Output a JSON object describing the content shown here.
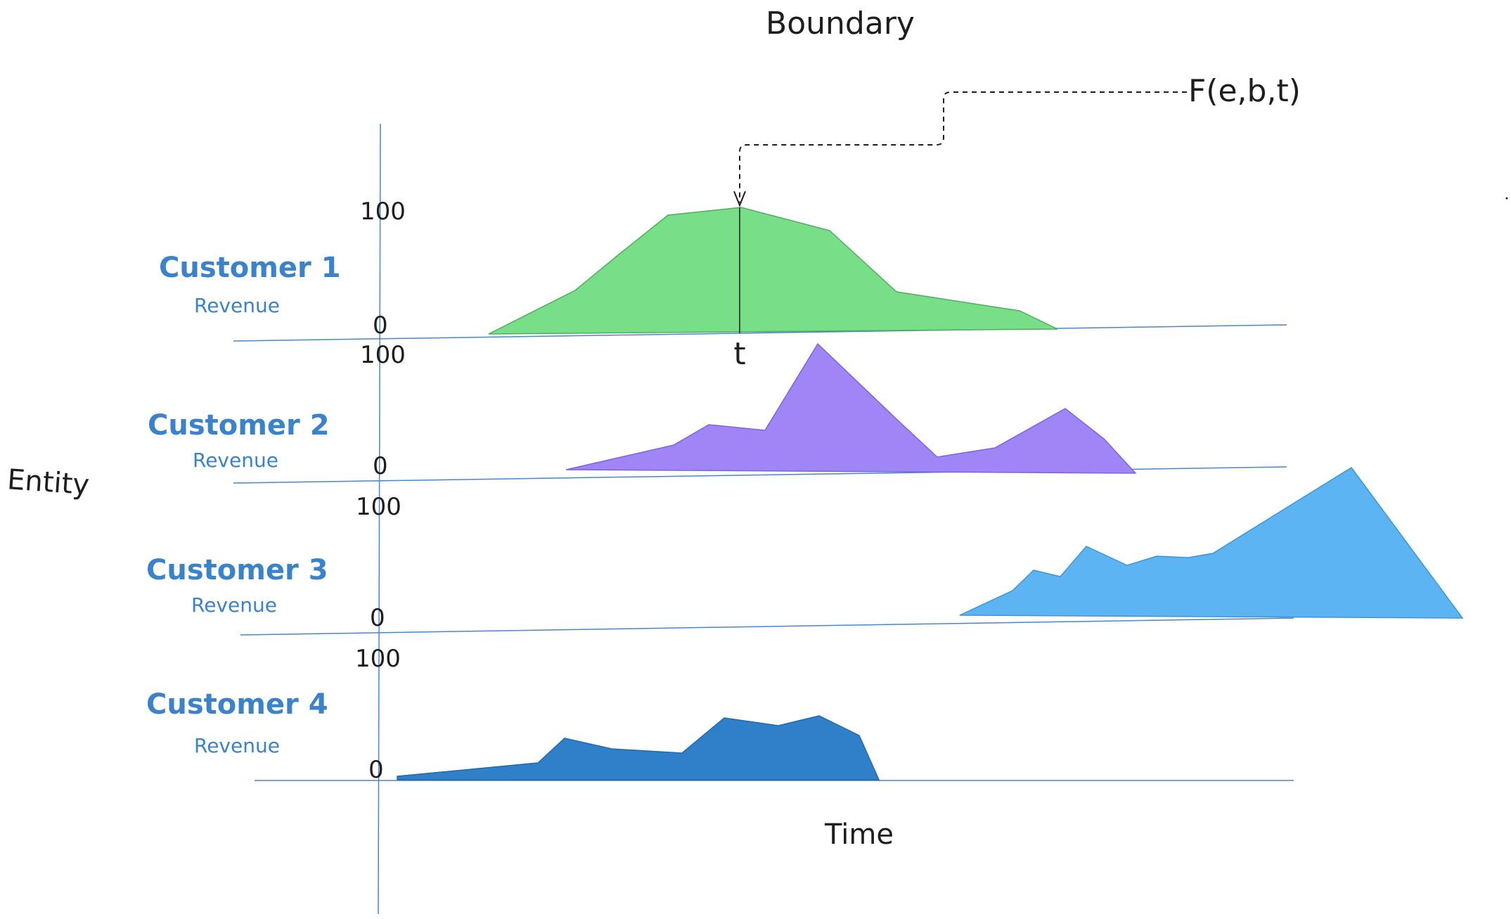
{
  "title": "Boundary",
  "function_label": "F(e,b,t)",
  "time_marker": "t",
  "axis": {
    "x_label": "Time",
    "y_label": "Entity"
  },
  "tick_labels": {
    "top": "100",
    "bottom": "0"
  },
  "rows": [
    {
      "name": "Customer 1",
      "metric": "Revenue",
      "color": "#78df88"
    },
    {
      "name": "Customer 2",
      "metric": "Revenue",
      "color": "#a085f6"
    },
    {
      "name": "Customer 3",
      "metric": "Revenue",
      "color": "#5db4f3"
    },
    {
      "name": "Customer 4",
      "metric": "Revenue",
      "color": "#2f80c8"
    }
  ],
  "colors": {
    "axis": "#4a86c8",
    "text": "#1e1e1e",
    "label": "#3a82c9"
  }
}
